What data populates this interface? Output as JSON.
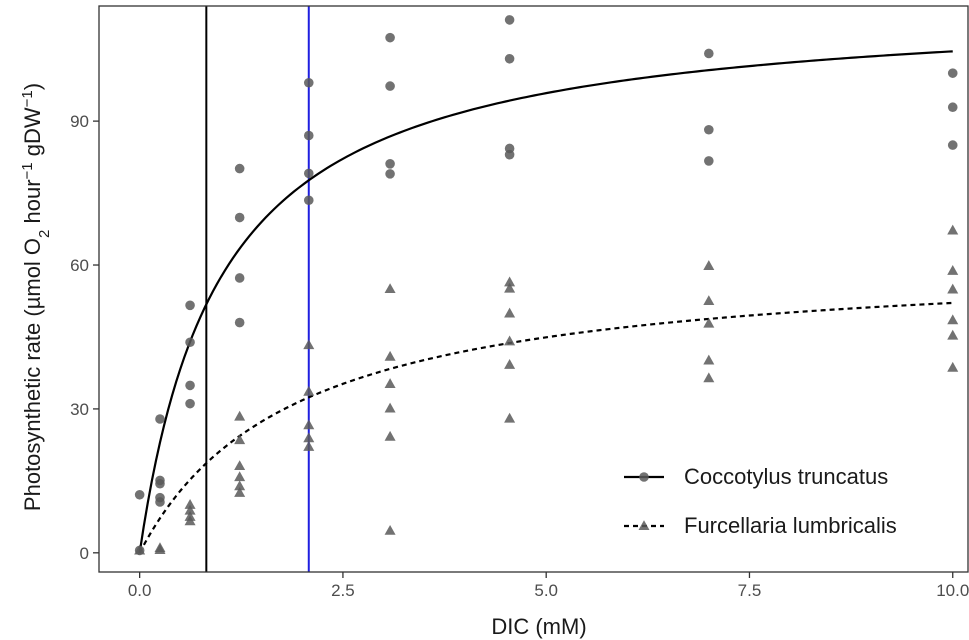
{
  "chart_data": {
    "type": "scatter",
    "xlabel": "DIC (mM)",
    "ylabel": {
      "pre": "Photosynthetic rate (µmol O",
      "sub": "2",
      "mid": " hour",
      "sup1": "−1",
      "post": " gDW",
      "sup2": "−1",
      "end": ")"
    },
    "xlim": [
      -0.5,
      10.2
    ],
    "ylim": [
      -4,
      114
    ],
    "x_ticks": [
      {
        "value": 0,
        "label": "0.0"
      },
      {
        "value": 2.5,
        "label": "2.5"
      },
      {
        "value": 5,
        "label": "5.0"
      },
      {
        "value": 7.5,
        "label": "7.5"
      },
      {
        "value": 10,
        "label": "10.0"
      }
    ],
    "y_ticks": [
      {
        "value": 0,
        "label": "0"
      },
      {
        "value": 30,
        "label": "30"
      },
      {
        "value": 60,
        "label": "60"
      },
      {
        "value": 90,
        "label": "90"
      }
    ],
    "grid": false,
    "legend_position": "bottom-right",
    "vertical_lines": [
      {
        "x": 0.82,
        "color": "#000000"
      },
      {
        "x": 2.08,
        "color": "#1f1fe0"
      }
    ],
    "series": [
      {
        "name": "Coccotylus truncatus",
        "marker": "circle",
        "line_style": "solid",
        "fit": {
          "vmax": 115,
          "km": 1.0
        },
        "points": [
          [
            0,
            12.1
          ],
          [
            0,
            0.5
          ],
          [
            0.25,
            27.9
          ],
          [
            0.25,
            15.1
          ],
          [
            0.25,
            14.4
          ],
          [
            0.25,
            11.5
          ],
          [
            0.25,
            10.6
          ],
          [
            0.62,
            51.6
          ],
          [
            0.62,
            43.9
          ],
          [
            0.62,
            34.9
          ],
          [
            0.62,
            31.1
          ],
          [
            1.23,
            80.1
          ],
          [
            1.23,
            69.9
          ],
          [
            1.23,
            57.3
          ],
          [
            1.23,
            48.0
          ],
          [
            2.08,
            98.0
          ],
          [
            2.08,
            87.0
          ],
          [
            2.08,
            79.1
          ],
          [
            2.08,
            73.5
          ],
          [
            3.08,
            107.4
          ],
          [
            3.08,
            97.3
          ],
          [
            3.08,
            81.1
          ],
          [
            3.08,
            79.0
          ],
          [
            4.55,
            111.1
          ],
          [
            4.55,
            103.0
          ],
          [
            4.55,
            84.3
          ],
          [
            4.55,
            83.0
          ],
          [
            7.0,
            104.1
          ],
          [
            7.0,
            88.2
          ],
          [
            7.0,
            81.7
          ],
          [
            10.0,
            100.0
          ],
          [
            10.0,
            92.9
          ],
          [
            10.0,
            85.0
          ]
        ]
      },
      {
        "name": "Furcellaria lumbricalis",
        "marker": "triangle",
        "line_style": "dashed",
        "fit": {
          "vmax": 62,
          "km": 1.9
        },
        "points": [
          [
            0,
            0.5
          ],
          [
            0.25,
            1.0
          ],
          [
            0.25,
            0.6
          ],
          [
            0.62,
            10.0
          ],
          [
            0.62,
            8.8
          ],
          [
            0.62,
            7.5
          ],
          [
            0.62,
            6.6
          ],
          [
            1.23,
            28.4
          ],
          [
            1.23,
            23.5
          ],
          [
            1.23,
            18.1
          ],
          [
            1.23,
            15.8
          ],
          [
            1.23,
            13.9
          ],
          [
            1.23,
            12.5
          ],
          [
            2.08,
            43.3
          ],
          [
            2.08,
            33.6
          ],
          [
            2.08,
            26.6
          ],
          [
            2.08,
            23.9
          ],
          [
            2.08,
            22.1
          ],
          [
            3.08,
            55.0
          ],
          [
            3.08,
            40.9
          ],
          [
            3.08,
            35.2
          ],
          [
            3.08,
            30.1
          ],
          [
            3.08,
            24.2
          ],
          [
            3.08,
            4.6
          ],
          [
            4.55,
            56.4
          ],
          [
            4.55,
            55.1
          ],
          [
            4.55,
            49.9
          ],
          [
            4.55,
            44.1
          ],
          [
            4.55,
            39.2
          ],
          [
            4.55,
            28.0
          ],
          [
            7.0,
            59.8
          ],
          [
            7.0,
            52.5
          ],
          [
            7.0,
            47.8
          ],
          [
            7.0,
            40.1
          ],
          [
            7.0,
            36.4
          ],
          [
            10.0,
            67.2
          ],
          [
            10.0,
            58.8
          ],
          [
            10.0,
            54.9
          ],
          [
            10.0,
            48.5
          ],
          [
            10.0,
            45.3
          ],
          [
            10.0,
            38.6
          ]
        ]
      }
    ],
    "colors": {
      "points": "#595959",
      "lines": "#000000",
      "panel_border": "#333333",
      "tick_labels": "#4d4d4d"
    }
  }
}
